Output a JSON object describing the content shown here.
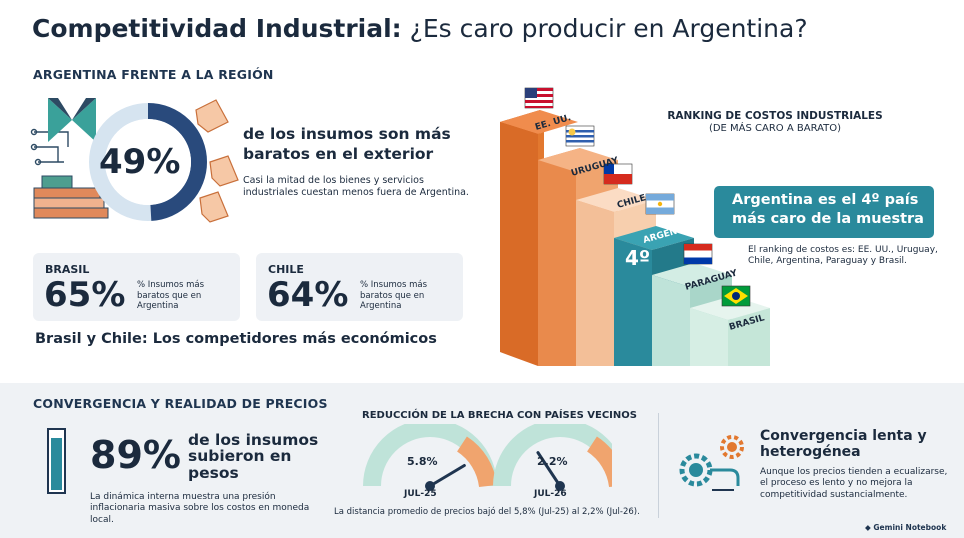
{
  "title": {
    "bold": "Competitividad Industrial:",
    "rest": "¿Es caro producir en Argentina?"
  },
  "region": {
    "heading": "ARGENTINA FRENTE A LA REGIÓN",
    "donut": {
      "pct_label": "49%",
      "value": 49
    },
    "headline": "de los insumos son más baratos en el exterior",
    "sub": "Casi la mitad de los bienes y servicios industriales cuestan menos fuera de Argentina.",
    "brasil": {
      "name": "BRASIL",
      "pct": "65%",
      "desc": "% Insumos más baratos que en Argentina"
    },
    "chile": {
      "name": "CHILE",
      "pct": "64%",
      "desc": "% Insumos más baratos que en Argentina"
    },
    "conclusion": "Brasil y Chile: Los competidores más económicos"
  },
  "ranking": {
    "heading": "RANKING DE COSTOS INDUSTRIALES",
    "subheading": "(DE MÁS CARO A BARATO)",
    "steps": [
      {
        "label": "EE. UU.",
        "rank": 1
      },
      {
        "label": "URUGUAY",
        "rank": 2
      },
      {
        "label": "CHILE",
        "rank": 3
      },
      {
        "label": "ARGENTINA",
        "rank": 4
      },
      {
        "label": "PARAGUAY",
        "rank": 5
      },
      {
        "label": "BRASIL",
        "rank": 6
      }
    ],
    "argentina_rank": "4º",
    "callout": "Argentina es el 4º país más caro de la muestra",
    "callout_sub": "El ranking de costos es: EE. UU., Uruguay, Chile, Argentina, Paraguay y Brasil.",
    "colors": {
      "usa": "#e2782f",
      "uru": "#f0a46e",
      "chi": "#f7cfae",
      "arg": "#2a8a9c",
      "par": "#bfe3d9",
      "bra": "#d6eee4"
    }
  },
  "convergence": {
    "heading": "CONVERGENCIA Y REALIDAD DE PRECIOS",
    "pct": "89%",
    "bar_fill": 0.89,
    "headline": "de los insumos subieron en pesos",
    "sub": "La dinámica interna muestra una presión inflacionaria masiva sobre los costos en moneda local.",
    "gap_heading": "REDUCCIÓN DE LA BRECHA CON PAÍSES VECINOS",
    "gauges": [
      {
        "value_label": "5.8%",
        "date": "JUL-25",
        "value": 5.8
      },
      {
        "value_label": "2.2%",
        "date": "JUL-26",
        "value": 2.2
      }
    ],
    "gauge_note": "La distancia promedio de precios bajó del 5,8% (Jul-25) al 2,2% (Jul-26).",
    "slow_title": "Convergencia lenta y heterogénea",
    "slow_sub": "Aunque los precios tienden a ecualizarse, el proceso es lento y no mejora la competitividad sustancialmente.",
    "brand": "Gemini Notebook"
  }
}
